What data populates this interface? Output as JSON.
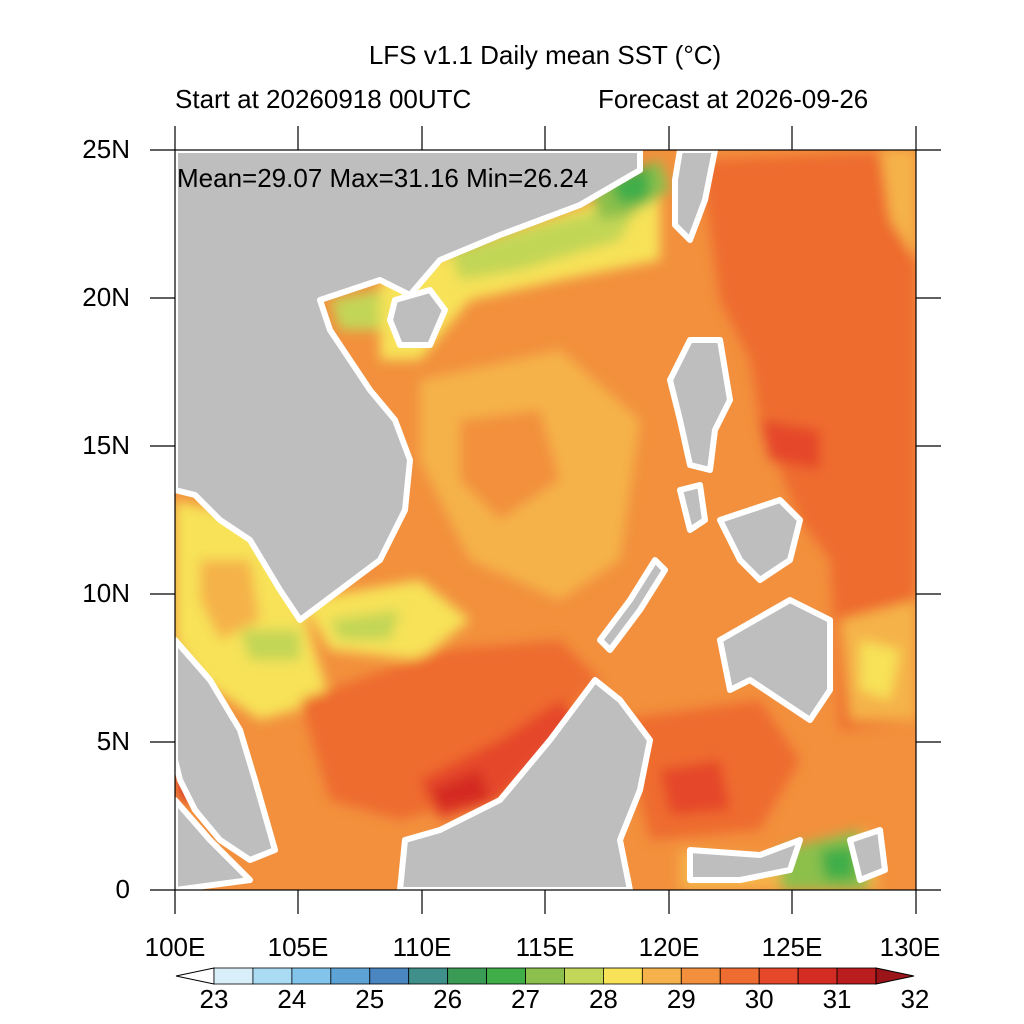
{
  "title": "LFS v1.1 Daily mean SST (°C)",
  "subtitle_left": "Start at 20260918 00UTC",
  "subtitle_right": "Forecast at 2026-09-26",
  "stats": "Mean=29.07  Max=31.16  Min=26.24",
  "y_axis_labels": [
    "25N",
    "20N",
    "15N",
    "10N",
    "5N",
    "0"
  ],
  "x_axis_labels": [
    "100E",
    "105E",
    "110E",
    "115E",
    "120E",
    "125E",
    "130E"
  ],
  "colorbar": {
    "labels": [
      "23",
      "24",
      "25",
      "26",
      "27",
      "28",
      "29",
      "30",
      "31",
      "32"
    ],
    "colors": [
      "#ffffff",
      "#d8eef9",
      "#a9dcf2",
      "#82c4ea",
      "#5ea3d6",
      "#4a86c2",
      "#3f8f8a",
      "#3a9b55",
      "#3fae48",
      "#8cc04c",
      "#c2d657",
      "#f7e258",
      "#f5b24a",
      "#f2903d",
      "#ee6c2f",
      "#e5472a",
      "#d42b22",
      "#b91d1e",
      "#9b1419"
    ]
  },
  "map": {
    "lon_range": [
      100,
      130
    ],
    "lat_range": [
      0,
      25
    ],
    "land_color": "#bebebe",
    "base_sst_color": "#f2903d"
  }
}
